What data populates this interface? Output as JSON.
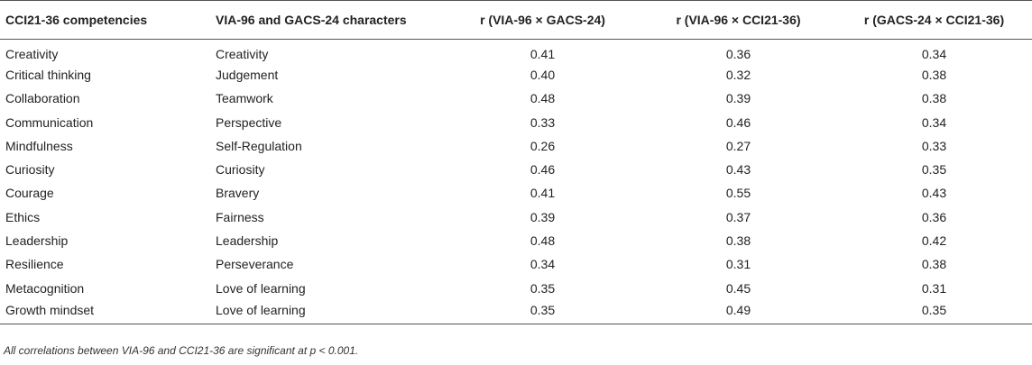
{
  "table": {
    "headers": [
      "CCI21-36 competencies",
      "VIA-96 and GACS-24 characters",
      "r (VIA-96 × GACS-24)",
      "r (VIA-96 × CCI21-36)",
      "r (GACS-24 × CCI21-36)"
    ],
    "rows": [
      [
        "Creativity",
        "Creativity",
        "0.41",
        "0.36",
        "0.34"
      ],
      [
        "Critical thinking",
        "Judgement",
        "0.40",
        "0.32",
        "0.38"
      ],
      [
        "Collaboration",
        "Teamwork",
        "0.48",
        "0.39",
        "0.38"
      ],
      [
        "Communication",
        "Perspective",
        "0.33",
        "0.46",
        "0.34"
      ],
      [
        "Mindfulness",
        "Self-Regulation",
        "0.26",
        "0.27",
        "0.33"
      ],
      [
        "Curiosity",
        "Curiosity",
        "0.46",
        "0.43",
        "0.35"
      ],
      [
        "Courage",
        "Bravery",
        "0.41",
        "0.55",
        "0.43"
      ],
      [
        "Ethics",
        "Fairness",
        "0.39",
        "0.37",
        "0.36"
      ],
      [
        "Leadership",
        "Leadership",
        "0.48",
        "0.38",
        "0.42"
      ],
      [
        "Resilience",
        "Perseverance",
        "0.34",
        "0.31",
        "0.38"
      ],
      [
        "Metacognition",
        "Love of learning",
        "0.35",
        "0.45",
        "0.31"
      ],
      [
        "Growth mindset",
        "Love of learning",
        "0.35",
        "0.49",
        "0.35"
      ]
    ]
  },
  "footnote": "All correlations between VIA-96 and CCI21-36 are significant at p < 0.001."
}
